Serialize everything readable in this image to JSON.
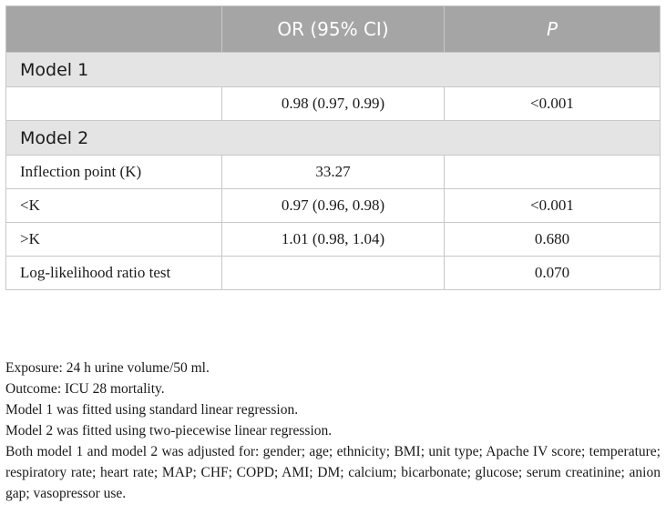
{
  "table": {
    "headers": [
      "",
      "OR (95% CI)",
      "P"
    ],
    "sections": [
      {
        "title": "Model 1",
        "rows": [
          {
            "label": "",
            "or": "0.98 (0.97, 0.99)",
            "p": "<0.001"
          }
        ]
      },
      {
        "title": "Model 2",
        "rows": [
          {
            "label": "Inflection point (K)",
            "or": "33.27",
            "p": ""
          },
          {
            "label": "<K",
            "or": "0.97 (0.96, 0.98)",
            "p": "<0.001"
          },
          {
            "label": ">K",
            "or": "1.01 (0.98, 1.04)",
            "p": "0.680"
          },
          {
            "label": "Log-likelihood ratio test",
            "or": "",
            "p": "0.070"
          }
        ]
      }
    ]
  },
  "notes": [
    "Exposure: 24 h urine volume/50 ml.",
    "Outcome: ICU 28 mortality.",
    "Model 1 was fitted using standard linear regression.",
    "Model 2 was fitted using two-piecewise linear regression.",
    "Both model 1 and model 2 was adjusted for: gender; age; ethnicity; BMI; unit type; Apache IV score; temperature; respiratory rate; heart rate; MAP; CHF; COPD; AMI; DM; calcium; bicarbonate; glucose; serum creatinine; anion gap; vasopressor use."
  ]
}
